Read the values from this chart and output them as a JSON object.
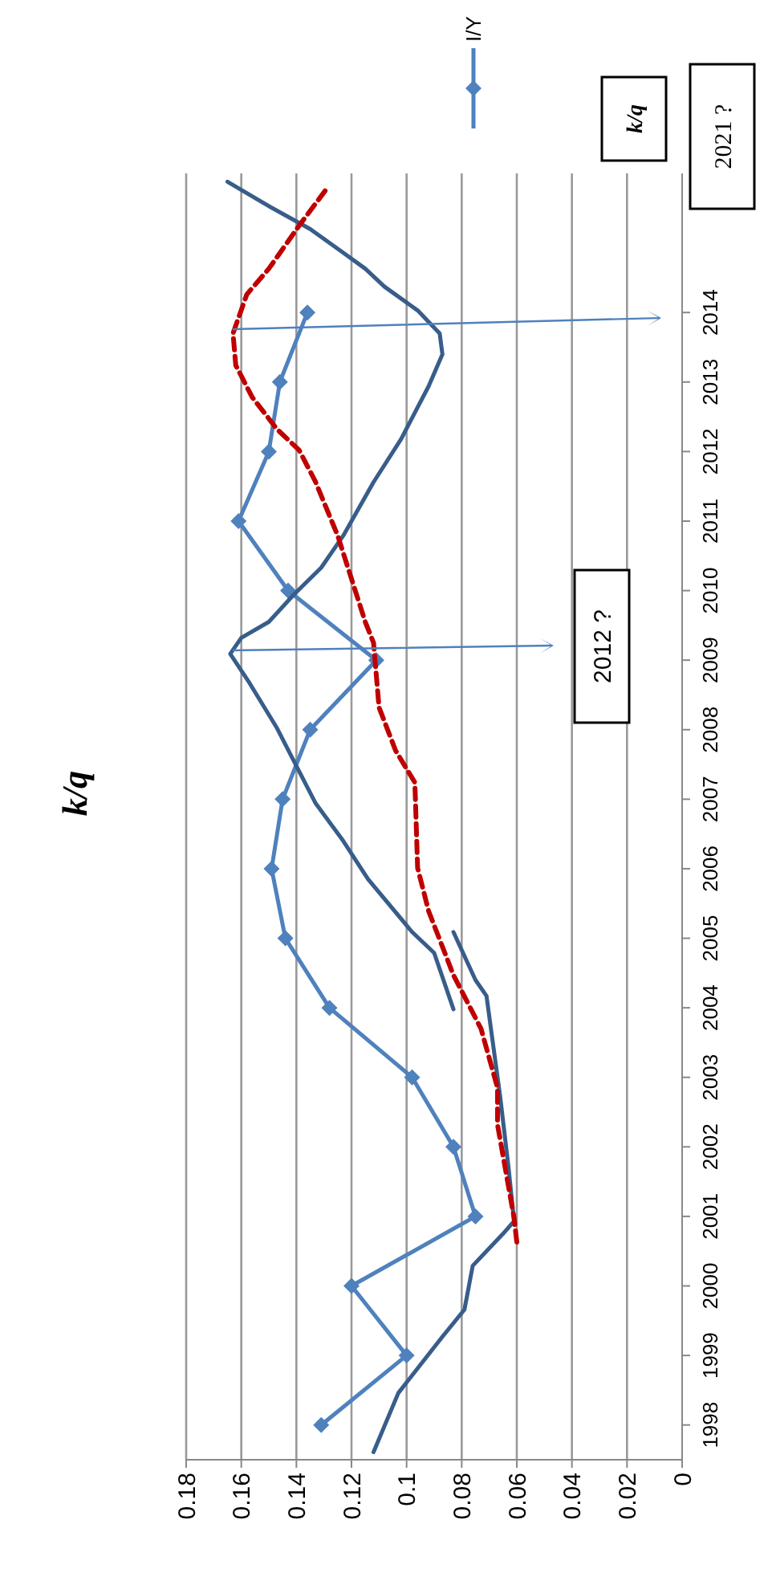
{
  "chart_data": {
    "type": "line",
    "title": "k/q",
    "xlim": [
      0.18,
      0
    ],
    "xticks": [
      0.18,
      0.16,
      0.14,
      0.12,
      0.1,
      0.08,
      0.06,
      0.04,
      0.02,
      0
    ],
    "ylim": [
      1997.5,
      2016
    ],
    "yticks": [
      1998,
      1999,
      2000,
      2001,
      2002,
      2003,
      2004,
      2005,
      2006,
      2007,
      2008,
      2009,
      2010,
      2011,
      2012,
      2013,
      2014
    ],
    "grid": "x",
    "legend": "top",
    "series": [
      {
        "name": "I/Y",
        "color": "#4f81bd",
        "marker": "diamond",
        "values": [
          1998,
          1999,
          2000,
          2001,
          2002,
          2003,
          2004,
          2005,
          2006,
          2007,
          2008,
          2009,
          2010,
          2011,
          2012,
          2013,
          2014
        ],
        "x": [
          0.131,
          0.1,
          0.12,
          0.075,
          0.083,
          0.098,
          0.128,
          0.144,
          0.149,
          0.145,
          0.135,
          0.111,
          0.143,
          0.161,
          0.15,
          0.146,
          0.136
        ]
      },
      {
        "color": "#385d8a",
        "marker": "none",
        "values": [
          1997.61,
          1998.46,
          1999.27,
          1999.66,
          2000.29,
          2000.75,
          2000.93,
          2001.7,
          2002.71,
          2004.17,
          2004.4,
          2005.09
        ],
        "x": [
          0.112,
          0.103,
          0.087,
          0.079,
          0.076,
          0.065,
          0.061,
          0.063,
          0.066,
          0.071,
          0.075,
          0.083
        ]
      },
      {
        "color": "#385d8a",
        "marker": "none",
        "values": [
          2003.98,
          2004.79,
          2005.09,
          2005.85,
          2006.4,
          2006.94,
          2007.4,
          2008.02,
          2008.67,
          2009.09,
          2009.32,
          2009.55,
          2009.94,
          2010.33,
          2010.79,
          2011.56,
          2012.18,
          2012.94,
          2013.4,
          2013.7,
          2014.03,
          2014.37,
          2014.63,
          2014.86,
          2015.2,
          2015.53,
          2015.88
        ],
        "x": [
          0.083,
          0.09,
          0.098,
          0.114,
          0.123,
          0.133,
          0.139,
          0.147,
          0.157,
          0.164,
          0.16,
          0.15,
          0.141,
          0.131,
          0.123,
          0.112,
          0.102,
          0.092,
          0.087,
          0.088,
          0.096,
          0.108,
          0.115,
          0.123,
          0.135,
          0.15,
          0.165
        ]
      },
      {
        "color": "#c00000",
        "marker": "none",
        "line_style": "dashed",
        "values": [
          2000.63,
          2000.98,
          2002.32,
          2002.85,
          2003.7,
          2004.47,
          2005.39,
          2006.01,
          2007.24,
          2007.7,
          2008.32,
          2009.25,
          2009.55,
          2010.79,
          2011.56,
          2012.02,
          2012.32,
          2012.78,
          2013.24,
          2013.7,
          2014.26,
          2014.63,
          2015.25,
          2015.78
        ],
        "x": [
          0.06,
          0.061,
          0.067,
          0.067,
          0.073,
          0.083,
          0.092,
          0.096,
          0.097,
          0.104,
          0.11,
          0.112,
          0.115,
          0.125,
          0.133,
          0.139,
          0.147,
          0.156,
          0.162,
          0.163,
          0.158,
          0.15,
          0.139,
          0.129
        ]
      }
    ],
    "annotations": [
      "2012 ?",
      "2021 ?",
      "k/q"
    ]
  }
}
